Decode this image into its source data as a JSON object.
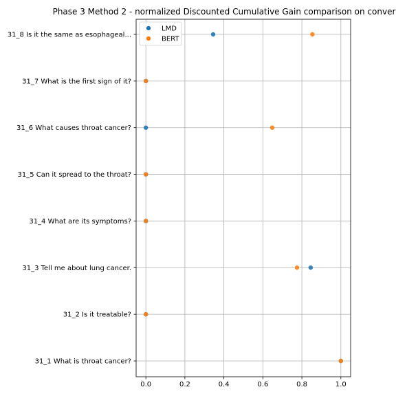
{
  "chart_data": {
    "type": "scatter",
    "title": "Phase 3 Method 2 - normalized Discounted Cumulative Gain comparison on conver",
    "xlabel": "",
    "ylabel": "",
    "xlim": [
      -0.05,
      1.05
    ],
    "xticks": [
      "0.0",
      "0.2",
      "0.4",
      "0.6",
      "0.8",
      "1.0"
    ],
    "xtick_values": [
      0.0,
      0.2,
      0.4,
      0.6,
      0.8,
      1.0
    ],
    "categories": [
      "31_1 What is throat cancer?",
      "31_2 Is it treatable?",
      "31_3 Tell me about lung cancer.",
      "31_4 What are its symptoms?",
      "31_5 Can it spread to the throat?",
      "31_6 What causes throat cancer?",
      "31_7 What is the first sign of it?",
      "31_8 Is it the same as esophageal..."
    ],
    "grid": true,
    "legend_position": "upper-left",
    "series": [
      {
        "name": "LMD",
        "color": "#1f77b4",
        "values": [
          1.0,
          0.0,
          0.845,
          0.0,
          0.0,
          0.0,
          0.0,
          0.345
        ]
      },
      {
        "name": "BERT",
        "color": "#ff7f0e",
        "values": [
          1.0,
          0.0,
          0.775,
          0.0,
          0.0,
          0.648,
          0.0,
          0.854
        ]
      }
    ]
  }
}
